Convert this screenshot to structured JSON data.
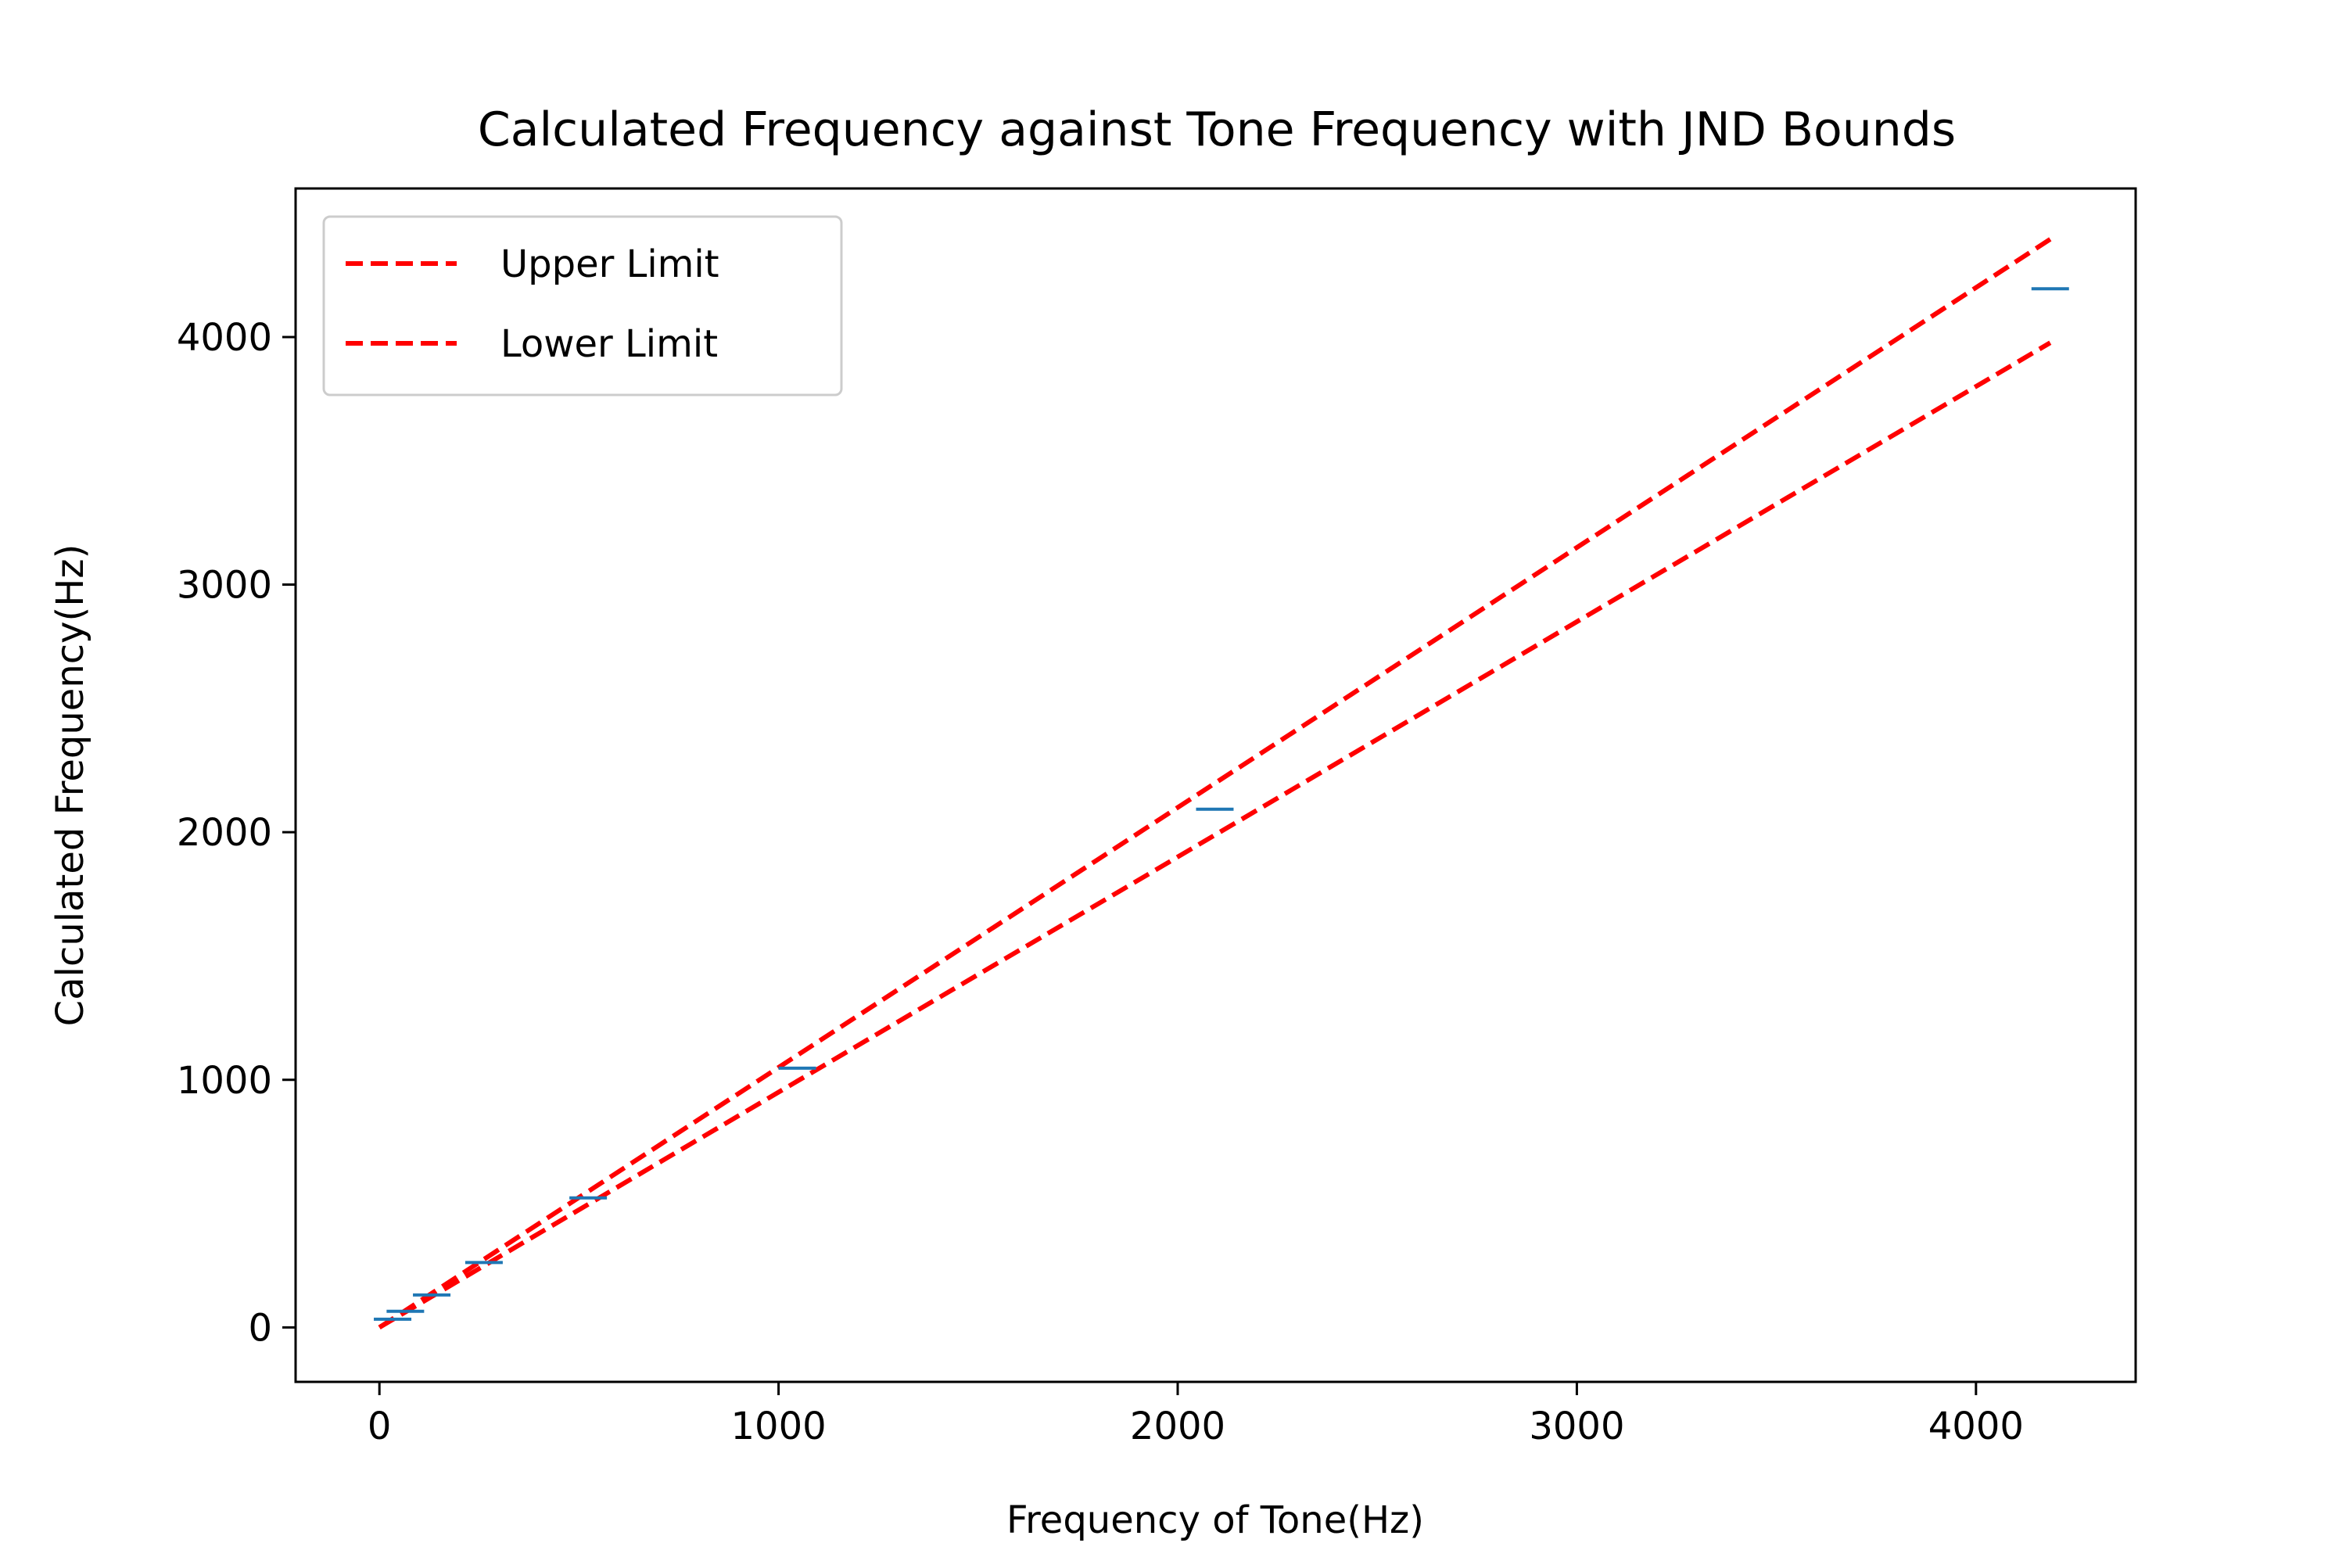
{
  "chart_data": {
    "type": "line",
    "title": "Calculated Frequency against Tone Frequency with JND Bounds",
    "xlabel": "Frequency of Tone(Hz)",
    "ylabel": "Calculated Frequency(Hz)",
    "xlim": [
      -210,
      4400
    ],
    "ylim": [
      -220,
      4600
    ],
    "xticks": [
      0,
      1000,
      2000,
      3000,
      4000
    ],
    "yticks": [
      0,
      1000,
      2000,
      3000,
      4000
    ],
    "grid": false,
    "legend_position": "top-left",
    "series": [
      {
        "name": "Upper Limit",
        "style": "dashed",
        "color": "#ff0000",
        "x": [
          0,
          4186
        ],
        "y": [
          0,
          4395
        ]
      },
      {
        "name": "Lower Limit",
        "style": "dashed",
        "color": "#ff0000",
        "x": [
          0,
          4186
        ],
        "y": [
          0,
          3977
        ]
      }
    ],
    "measurements": {
      "color": "#1f77b4",
      "marker": "horizontal-bar",
      "points": [
        {
          "x": 33,
          "y": 33
        },
        {
          "x": 65,
          "y": 65
        },
        {
          "x": 131,
          "y": 131
        },
        {
          "x": 262,
          "y": 262
        },
        {
          "x": 523,
          "y": 523
        },
        {
          "x": 1047,
          "y": 1047
        },
        {
          "x": 2093,
          "y": 2093
        },
        {
          "x": 4186,
          "y": 4195
        }
      ]
    }
  }
}
